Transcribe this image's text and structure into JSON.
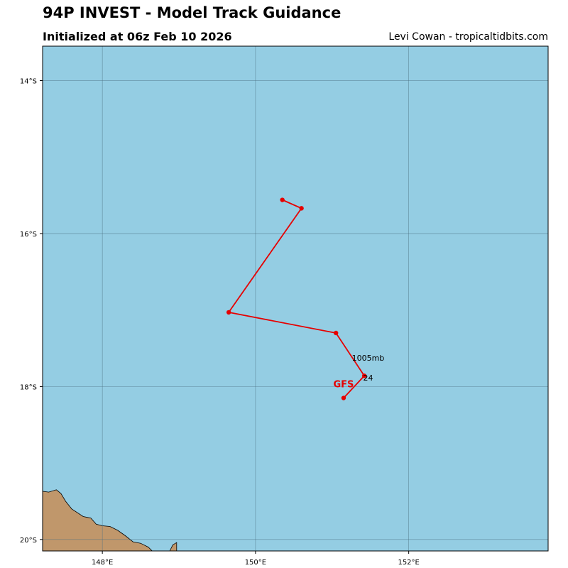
{
  "header": {
    "title": "94P INVEST - Model Track Guidance",
    "subtitle": "Initialized at 06z Feb 10 2026",
    "credit": "Levi Cowan - tropicaltidbits.com"
  },
  "map": {
    "extent": {
      "lon": [
        147.22,
        153.82
      ],
      "lat": [
        -20.15,
        -13.55
      ]
    },
    "ocean_color": "#94cde3",
    "land_color": "#c0976b",
    "grid_color": "#4a6f80",
    "lon_ticks": [
      {
        "value": 148,
        "label": "148°E"
      },
      {
        "value": 150,
        "label": "150°E"
      },
      {
        "value": 152,
        "label": "152°E"
      }
    ],
    "lat_ticks": [
      {
        "value": -14,
        "label": "14°S"
      },
      {
        "value": -16,
        "label": "16°S"
      },
      {
        "value": -18,
        "label": "18°S"
      },
      {
        "value": -20,
        "label": "20°S"
      }
    ],
    "coastline": [
      [
        147.22,
        -19.37
      ],
      [
        147.3,
        -19.38
      ],
      [
        147.4,
        -19.35
      ],
      [
        147.46,
        -19.4
      ],
      [
        147.52,
        -19.5
      ],
      [
        147.6,
        -19.6
      ],
      [
        147.75,
        -19.7
      ],
      [
        147.85,
        -19.72
      ],
      [
        147.92,
        -19.8
      ],
      [
        148.0,
        -19.82
      ],
      [
        148.1,
        -19.83
      ],
      [
        148.2,
        -19.88
      ],
      [
        148.3,
        -19.95
      ],
      [
        148.4,
        -20.03
      ],
      [
        148.5,
        -20.05
      ],
      [
        148.6,
        -20.1
      ],
      [
        148.65,
        -20.15
      ]
    ],
    "island": [
      [
        148.88,
        -20.15
      ],
      [
        148.92,
        -20.07
      ],
      [
        148.97,
        -20.04
      ],
      [
        148.97,
        -20.15
      ]
    ],
    "tracks": [
      {
        "model": "GFS",
        "color": "#e60000",
        "points": [
          {
            "lon": 151.15,
            "lat": -18.15
          },
          {
            "lon": 151.42,
            "lat": -17.86
          },
          {
            "lon": 151.05,
            "lat": -17.3
          },
          {
            "lon": 149.65,
            "lat": -17.03
          },
          {
            "lon": 150.6,
            "lat": -15.67
          },
          {
            "lon": 150.35,
            "lat": -15.56
          }
        ],
        "pressure_label": {
          "text": "1005mb",
          "lon": 151.47,
          "lat": -17.66
        },
        "hour_label": {
          "text": "24",
          "lon": 151.47,
          "lat": -17.92
        },
        "model_label": {
          "lon": 151.15,
          "lat": -18.01
        }
      }
    ]
  }
}
